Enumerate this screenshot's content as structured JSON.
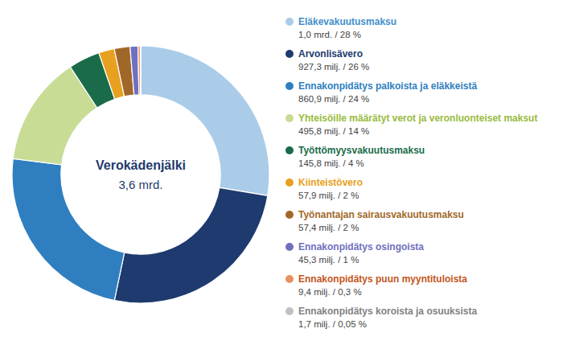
{
  "chart_data": {
    "type": "pie",
    "title": "Verokädenjälki",
    "subtitle": "3,6 mrd.",
    "categories": [
      "Eläkevakuutusmaksu",
      "Arvonlisävero",
      "Ennakonpidätys palkoista ja eläkkeistä",
      "Yhteisöille määrätyt verot ja veronluonteiset maksut",
      "Työttömyysvakuutusmaksu",
      "Kiinteistövero",
      "Työnantajan sairausvakuutusmaksu",
      "Ennakonpidätys osingoista",
      "Ennakonpidätys puun myyntituloista",
      "Ennakonpidätys koroista ja osuuksista"
    ],
    "values": [
      28,
      26,
      24,
      14,
      4,
      2,
      2,
      1,
      0.3,
      0.05
    ],
    "value_labels": [
      "1,0 mrd. / 28 %",
      "927,3 milj. / 26 %",
      "860,9 milj. / 24 %",
      "495,8 milj. / 14 %",
      "145,8 milj. / 4 %",
      "57,9 milj. / 2 %",
      "57,4 milj. / 2 %",
      "45,3 milj. / 1 %",
      "9,4 milj. / 0,3 %",
      "1,7 milj. / 0,05 %"
    ],
    "colors": [
      "#aacce8",
      "#1e3a6e",
      "#2f7fc0",
      "#c8dc96",
      "#1a6b4a",
      "#e8a020",
      "#a06828",
      "#7070c0",
      "#e89060",
      "#c0c0c0"
    ],
    "legend": "right"
  }
}
